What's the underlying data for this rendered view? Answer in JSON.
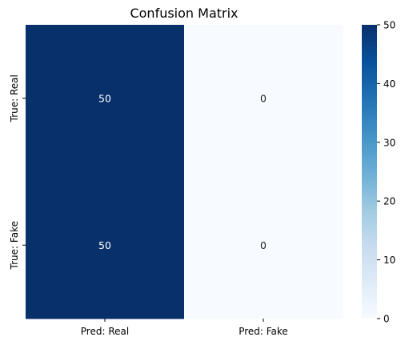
{
  "chart_data": {
    "type": "heatmap",
    "title": "Confusion Matrix",
    "xlabel": "",
    "ylabel": "",
    "x_categories": [
      "Pred: Real",
      "Pred: Fake"
    ],
    "y_categories": [
      "True: Real",
      "True: Fake"
    ],
    "values": [
      [
        50,
        0
      ],
      [
        50,
        0
      ]
    ],
    "colorbar": {
      "range": [
        0,
        50
      ],
      "ticks": [
        0,
        10,
        20,
        30,
        40,
        50
      ],
      "colormap": "Blues",
      "low_color": "#f7fbff",
      "high_color": "#08306b"
    },
    "annotations": true,
    "grid": false
  }
}
